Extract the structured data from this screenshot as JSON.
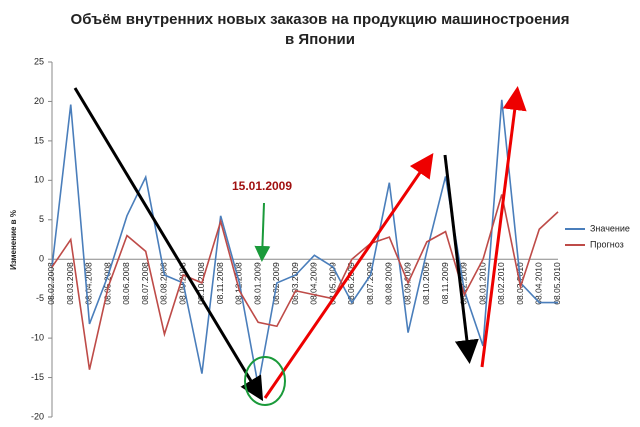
{
  "chart_data": {
    "type": "line",
    "title": [
      "Объём внутренних новых заказов на продукцию машиностроения",
      "в Японии"
    ],
    "y_label": "Изменение в %",
    "annotation": "15.01.2009",
    "categories": [
      "08.02.2008",
      "08.03.2008",
      "08.04.2008",
      "08.05.2008",
      "08.06.2008",
      "08.07.2008",
      "08.08.2008",
      "08.09.2008",
      "08.10.2008",
      "08.11.2008",
      "08.12.2008",
      "08.01.2009",
      "08.02.2009",
      "08.03.2009",
      "08.04.2009",
      "08.05.2009",
      "08.06.2009",
      "08.07.2009",
      "08.08.2009",
      "08.09.2009",
      "08.10.2009",
      "08.11.2009",
      "08.12.2009",
      "08.01.2010",
      "08.02.2010",
      "08.03.2010",
      "08.04.2010",
      "08.05.2010"
    ],
    "series": [
      {
        "name": "Значение",
        "color": "#4a7ebb",
        "values": [
          -1,
          19.6,
          -8.2,
          -2,
          5.5,
          10.4,
          -2,
          -3,
          -14.5,
          5.5,
          -3,
          -16,
          -3,
          -2,
          0.5,
          -1,
          -5.5,
          -2,
          9.7,
          -9.3,
          1,
          10.5,
          -4,
          -11,
          20.2,
          -3,
          -5.5,
          -5.5
        ]
      },
      {
        "name": "Прогноз",
        "color": "#be4b48",
        "values": [
          -1,
          2.5,
          -14,
          -3.5,
          3,
          1,
          -9.5,
          -2,
          -3,
          4.8,
          -4,
          -8,
          -8.5,
          -4,
          -4.5,
          -5,
          0,
          2,
          2.8,
          -3,
          2.2,
          3.5,
          -4.5,
          0,
          8.2,
          -3.5,
          3.8,
          6
        ]
      }
    ],
    "ylim": [
      -20,
      25
    ],
    "yticks": [
      -20,
      -15,
      -10,
      -5,
      0,
      5,
      10,
      15,
      20,
      25
    ]
  }
}
